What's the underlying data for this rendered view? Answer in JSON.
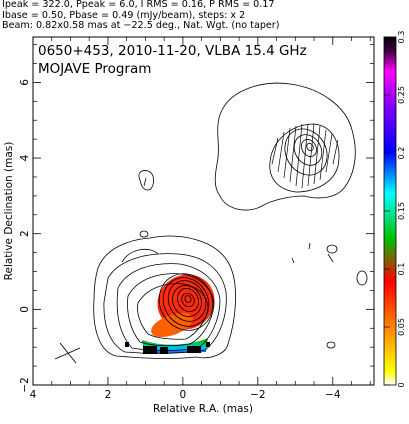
{
  "header": {
    "lines": [
      "Ipeak = 322.0, Ppeak = 6.0, I RMS = 0.16, P RMS = 0.17",
      "Ibase = 0.50, Pbase = 0.49 (mJy/beam), steps: x 2",
      "Beam: 0.82x0.58 mas at −22.5 deg., Nat. Wgt. (no taper)"
    ]
  },
  "chart_data": {
    "type": "contour",
    "title": "0650+453, 2010-11-20, VLBA 15.4 GHz",
    "subtitle": "MOJAVE Program",
    "xlabel": "Relative R.A. (mas)",
    "ylabel": "Relative Declination (mas)",
    "xlim": [
      4.0,
      -5.1
    ],
    "ylim": [
      -2.0,
      7.2
    ],
    "x_ticks": [
      4,
      2,
      0,
      -2,
      -4
    ],
    "x_tick_labels": [
      "4",
      "2",
      "0",
      "−2",
      "−4"
    ],
    "y_ticks": [
      -2,
      0,
      2,
      4,
      6
    ],
    "y_tick_labels": [
      "−2",
      "0",
      "2",
      "4",
      "6"
    ],
    "colorbar": {
      "min": 0,
      "max": 0.3,
      "ticks": [
        0,
        0.05,
        0.1,
        0.15,
        0.2,
        0.25,
        0.3
      ],
      "tick_labels": [
        "0",
        "0.05",
        "0.1",
        "0.15",
        "0.2",
        "0.25",
        "0.3"
      ]
    },
    "core": {
      "x": 0.0,
      "y": 0.05,
      "peak_mJy_per_beam": 322.0
    },
    "contour_base_mJy_per_beam": 0.5,
    "contour_step_factor": 2,
    "jet_component": {
      "x": -2.9,
      "y": 4.0
    },
    "beam": {
      "major_mas": 0.82,
      "minor_mas": 0.58,
      "pa_deg": -22.5
    },
    "colors": {
      "frame": "#000000",
      "contour": "#000000"
    }
  }
}
